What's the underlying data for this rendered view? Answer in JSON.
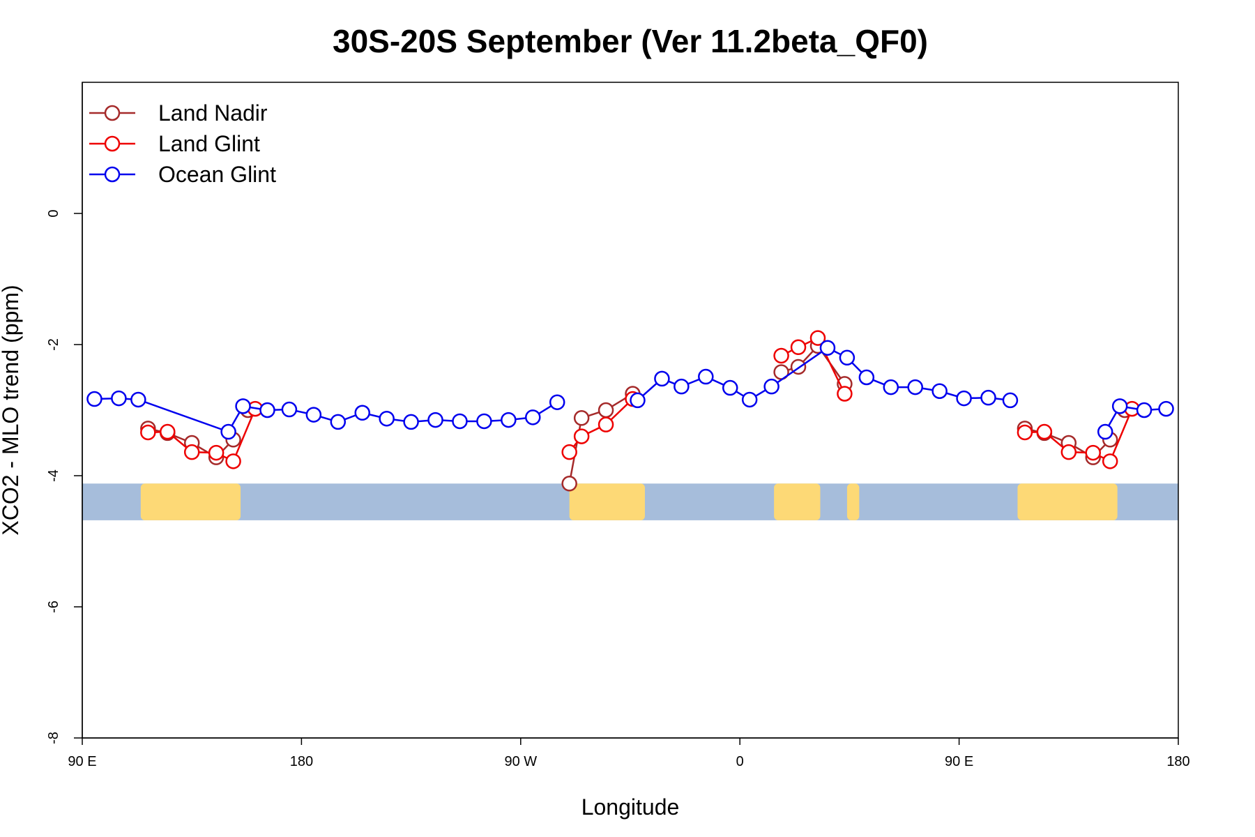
{
  "chart_data": {
    "type": "line",
    "title": "30S-20S September (Ver 11.2beta_QF0)",
    "xlabel": "Longitude",
    "ylabel": "XCO2 - MLO trend (ppm)",
    "xlim": [
      90,
      540
    ],
    "ylim": [
      -8,
      2
    ],
    "x_ticks": [
      {
        "value": 90,
        "label": "90 E"
      },
      {
        "value": 180,
        "label": "180"
      },
      {
        "value": 270,
        "label": "90 W"
      },
      {
        "value": 360,
        "label": "0"
      },
      {
        "value": 450,
        "label": "90 E"
      },
      {
        "value": 540,
        "label": "180"
      }
    ],
    "y_ticks": [
      {
        "value": 0,
        "label": "0"
      },
      {
        "value": -2,
        "label": "-2"
      },
      {
        "value": -4,
        "label": "-4"
      },
      {
        "value": -6,
        "label": "-6"
      },
      {
        "value": -8,
        "label": "-8"
      }
    ],
    "legend_position": "top-left",
    "map_strip": {
      "y_top": -4.12,
      "y_bottom": -4.68,
      "ocean_color": "#a6bddb",
      "land_color": "#fdd976"
    },
    "land_regions": [
      {
        "x_start": 114,
        "x_end": 155
      },
      {
        "x_start": 290,
        "x_end": 321
      },
      {
        "x_start": 374,
        "x_end": 393
      },
      {
        "x_start": 404,
        "x_end": 409
      },
      {
        "x_start": 474,
        "x_end": 515
      }
    ],
    "series": [
      {
        "name": "Land Nadir",
        "color": "#a52a2a",
        "segments": [
          [
            [
              117,
              -3.28
            ],
            [
              125,
              -3.35
            ],
            [
              135,
              -3.5
            ],
            [
              145,
              -3.72
            ],
            [
              152,
              -3.45
            ]
          ],
          [
            [
              158,
              -3.0
            ]
          ],
          [
            [
              290,
              -4.12
            ],
            [
              295,
              -3.12
            ],
            [
              305,
              -3.0
            ],
            [
              316,
              -2.75
            ]
          ],
          [
            [
              377,
              -2.42
            ],
            [
              384,
              -2.34
            ],
            [
              392,
              -2.02
            ],
            [
              403,
              -2.6
            ]
          ],
          [
            [
              477,
              -3.28
            ],
            [
              485,
              -3.35
            ],
            [
              495,
              -3.5
            ],
            [
              505,
              -3.72
            ],
            [
              512,
              -3.45
            ]
          ],
          [
            [
              518,
              -3.0
            ]
          ]
        ]
      },
      {
        "name": "Land Glint",
        "color": "#ee0000",
        "segments": [
          [
            [
              117,
              -3.34
            ],
            [
              125,
              -3.33
            ],
            [
              135,
              -3.64
            ],
            [
              145,
              -3.65
            ],
            [
              152,
              -3.78
            ],
            [
              161,
              -2.98
            ]
          ],
          [
            [
              290,
              -3.64
            ],
            [
              295,
              -3.4
            ],
            [
              305,
              -3.22
            ],
            [
              316,
              -2.83
            ]
          ],
          [
            [
              377,
              -2.17
            ],
            [
              384,
              -2.04
            ],
            [
              392,
              -1.9
            ],
            [
              403,
              -2.75
            ]
          ],
          [
            [
              477,
              -3.34
            ],
            [
              485,
              -3.33
            ],
            [
              495,
              -3.64
            ],
            [
              505,
              -3.65
            ],
            [
              512,
              -3.78
            ],
            [
              521,
              -2.98
            ]
          ]
        ]
      },
      {
        "name": "Ocean Glint",
        "color": "#0000ee",
        "segments": [
          [
            [
              95,
              -2.83
            ],
            [
              105,
              -2.82
            ],
            [
              113,
              -2.84
            ],
            [
              150,
              -3.33
            ],
            [
              156,
              -2.94
            ],
            [
              166,
              -3.0
            ],
            [
              175,
              -2.99
            ],
            [
              185,
              -3.07
            ],
            [
              195,
              -3.18
            ],
            [
              205,
              -3.04
            ],
            [
              215,
              -3.13
            ],
            [
              225,
              -3.18
            ],
            [
              235,
              -3.15
            ],
            [
              245,
              -3.17
            ],
            [
              255,
              -3.17
            ],
            [
              265,
              -3.15
            ],
            [
              275,
              -3.11
            ],
            [
              285,
              -2.88
            ]
          ],
          [
            [
              318,
              -2.85
            ],
            [
              328,
              -2.52
            ],
            [
              336,
              -2.64
            ],
            [
              346,
              -2.49
            ],
            [
              356,
              -2.66
            ],
            [
              364,
              -2.84
            ],
            [
              373,
              -2.64
            ],
            [
              396,
              -2.05
            ],
            [
              404,
              -2.2
            ],
            [
              412,
              -2.5
            ],
            [
              422,
              -2.65
            ],
            [
              432,
              -2.65
            ],
            [
              442,
              -2.71
            ],
            [
              452,
              -2.82
            ],
            [
              462,
              -2.81
            ],
            [
              471,
              -2.85
            ]
          ],
          [
            [
              510,
              -3.33
            ],
            [
              516,
              -2.94
            ],
            [
              526,
              -3.0
            ],
            [
              535,
              -2.98
            ]
          ]
        ]
      }
    ]
  }
}
